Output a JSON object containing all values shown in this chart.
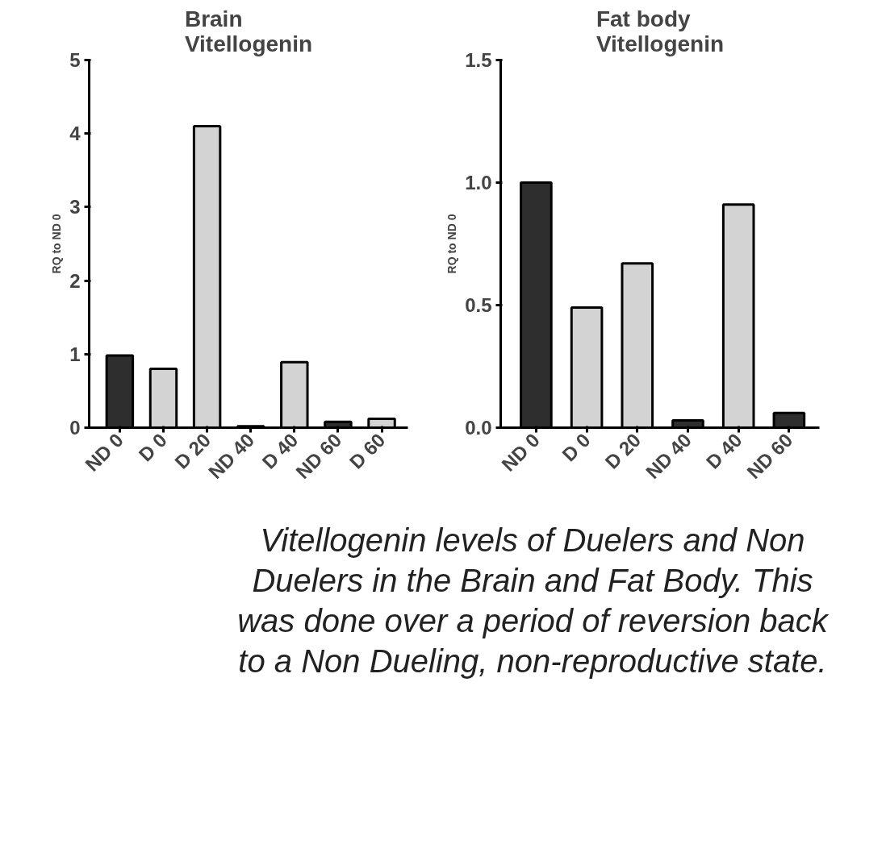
{
  "chart_data": [
    {
      "type": "bar",
      "title": "Brain\nVitellogenin",
      "ylabel": "RQ to ND 0",
      "categories": [
        "ND 0",
        "D 0",
        "D 20",
        "ND 40",
        "D 40",
        "ND 60",
        "D 60"
      ],
      "values": [
        0.98,
        0.8,
        4.1,
        0.02,
        0.89,
        0.08,
        0.12
      ],
      "colors": [
        "#2e2e2e",
        "#d3d3d3",
        "#d3d3d3",
        "#2e2e2e",
        "#d3d3d3",
        "#2e2e2e",
        "#d3d3d3"
      ],
      "ylim": [
        0,
        5
      ],
      "yticks": [
        0,
        1,
        2,
        3,
        4,
        5
      ]
    },
    {
      "type": "bar",
      "title": "Fat body\nVitellogenin",
      "ylabel": "RQ to ND 0",
      "categories": [
        "ND 0",
        "D 0",
        "D 20",
        "ND 40",
        "D 40",
        "ND 60"
      ],
      "values": [
        1.0,
        0.49,
        0.67,
        0.03,
        0.91,
        0.06
      ],
      "colors": [
        "#2e2e2e",
        "#d3d3d3",
        "#d3d3d3",
        "#2e2e2e",
        "#d3d3d3",
        "#2e2e2e"
      ],
      "ylim": [
        0,
        1.5
      ],
      "yticks": [
        {
          "value": 0,
          "label": "0.0"
        },
        {
          "value": 0.5,
          "label": "0.5"
        },
        {
          "value": 1,
          "label": "1.0"
        },
        {
          "value": 1.5,
          "label": "1.5"
        }
      ],
      "annotations": [
        "Vitellogenin levels of Duelers and Non Duelers in the Brain and Fat Body. This was done over a period of reversion back to a Non Dueling, non-reproductive state."
      ]
    }
  ]
}
